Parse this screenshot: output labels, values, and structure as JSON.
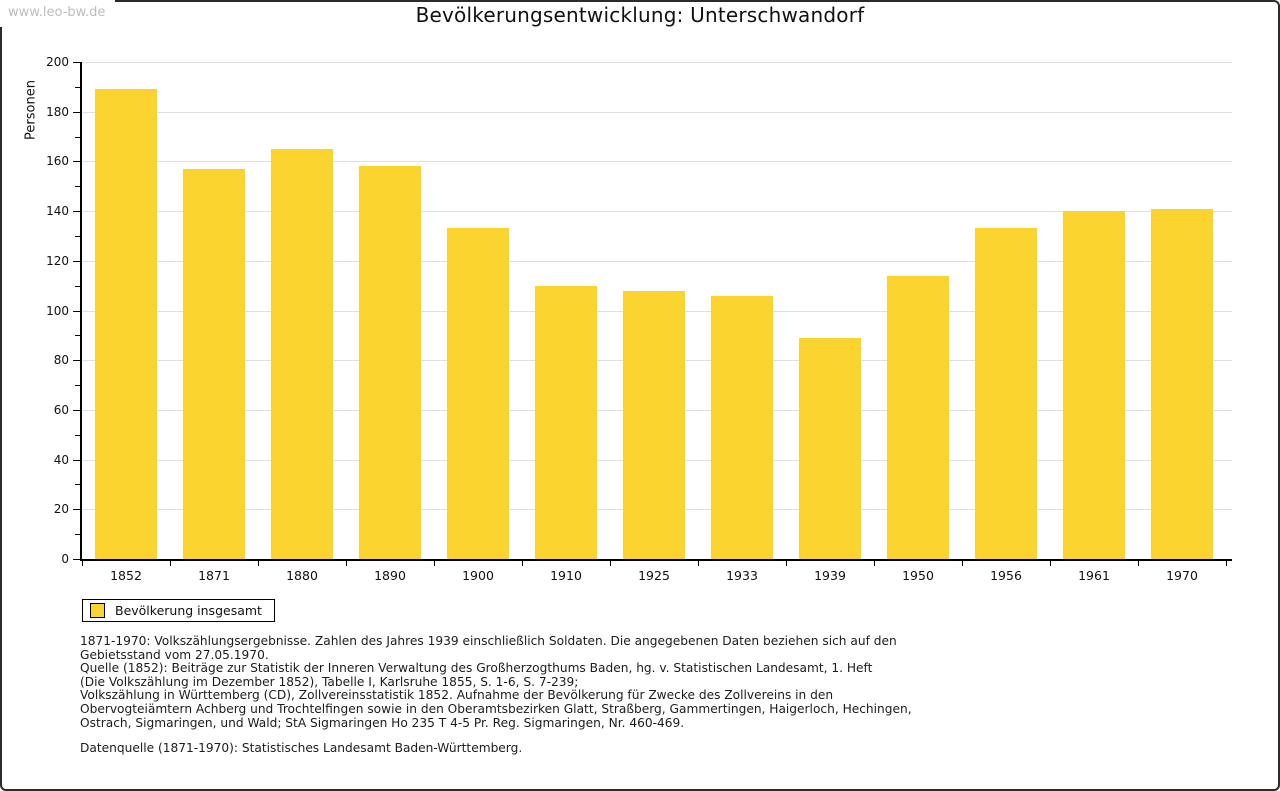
{
  "watermark": "www.leo-bw.de",
  "title": "Bevölkerungsentwicklung: Unterschwandorf",
  "chart_data": {
    "type": "bar",
    "title": "Bevölkerungsentwicklung: Unterschwandorf",
    "ylabel": "Personen",
    "xlabel": "",
    "categories": [
      "1852",
      "1871",
      "1880",
      "1890",
      "1900",
      "1910",
      "1925",
      "1933",
      "1939",
      "1950",
      "1956",
      "1961",
      "1970"
    ],
    "values": [
      189,
      157,
      165,
      158,
      133,
      110,
      108,
      106,
      89,
      114,
      133,
      140,
      141
    ],
    "ylim": [
      0,
      200
    ],
    "yticks": [
      0,
      20,
      40,
      60,
      80,
      100,
      120,
      140,
      160,
      180,
      200
    ],
    "ytick_step": 20,
    "minor_tick_step": 10,
    "grid": true,
    "legend_position": "bottom-left",
    "bar_color": "#FBD32E",
    "grid_color": "#E0E0E0",
    "axis_color": "#000000"
  },
  "legend": {
    "label": "Bevölkerung insgesamt"
  },
  "footnotes": {
    "lines": [
      "1871-1970: Volkszählungsergebnisse. Zahlen des Jahres 1939 einschließlich Soldaten. Die angegebenen Daten beziehen sich auf den",
      "Gebietsstand vom 27.05.1970.",
      "Quelle (1852): Beiträge zur Statistik der Inneren Verwaltung des Großherzogthums Baden, hg. v. Statistischen Landesamt, 1. Heft",
      "(Die Volkszählung im Dezember 1852), Tabelle I, Karlsruhe 1855, S. 1-6, S. 7-239;",
      "Volkszählung in Württemberg (CD), Zollvereinsstatistik 1852. Aufnahme der Bevölkerung für Zwecke des Zollvereins in den",
      "Obervogteiämtern Achberg und Trochtelfingen sowie in den Oberamtsbezirken Glatt, Straßberg, Gammertingen, Haigerloch, Hechingen,",
      "Ostrach, Sigmaringen, und Wald; StA Sigmaringen Ho 235 T 4-5 Pr. Reg. Sigmaringen, Nr. 460-469."
    ]
  },
  "datasource": "Datenquelle (1871-1970): Statistisches Landesamt Baden-Württemberg."
}
